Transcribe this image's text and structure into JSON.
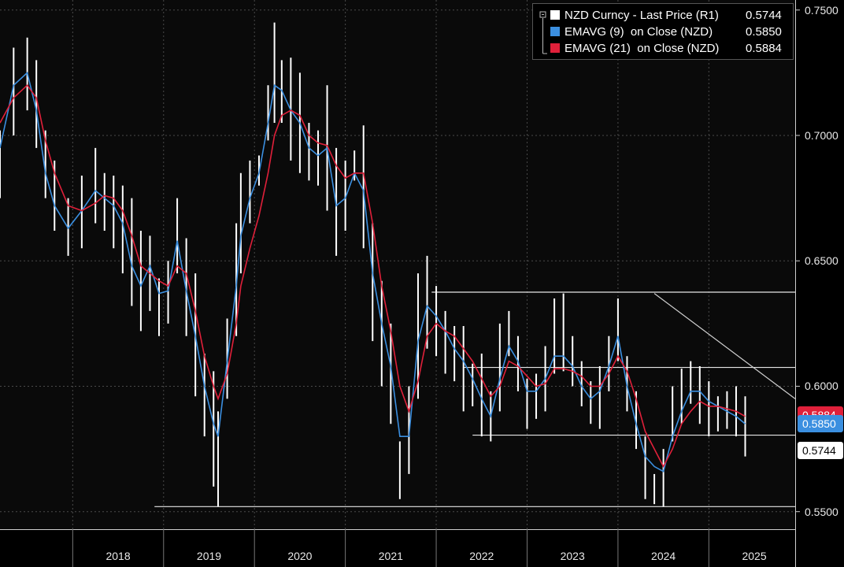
{
  "legend": {
    "items": [
      {
        "label": "NZD Curncy - Last Price (R1)",
        "value": "0.5744",
        "color": "#ffffff"
      },
      {
        "label": "EMAVG (9)  on Close (NZD)",
        "value": "0.5850",
        "color": "#3b8fe0"
      },
      {
        "label": "EMAVG (21)  on Close (NZD)",
        "value": "0.5884",
        "color": "#e0203a"
      }
    ]
  },
  "price_tags": [
    {
      "text": "0.5884",
      "value": 0.5884,
      "bg": "#e0203a",
      "fg": "#ffffff"
    },
    {
      "text": "0.5850",
      "value": 0.585,
      "bg": "#3b8fe0",
      "fg": "#ffffff"
    },
    {
      "text": "0.5744",
      "value": 0.5744,
      "bg": "#ffffff",
      "fg": "#000000"
    }
  ],
  "chart_data": {
    "type": "line",
    "title": "",
    "xlabel": "",
    "ylabel": "",
    "y_axis_side": "right",
    "ylim": [
      0.543,
      0.754
    ],
    "xlim": [
      2017.2,
      2025.95
    ],
    "grid": true,
    "legend_position": "top-right",
    "x_tick_labels": [
      "2018",
      "2019",
      "2020",
      "2021",
      "2022",
      "2023",
      "2024",
      "2025"
    ],
    "year_boundaries": [
      2018,
      2019,
      2020,
      2021,
      2022,
      2023,
      2024,
      2025
    ],
    "y_ticks": [
      {
        "value": 0.75,
        "label": "0.7500"
      },
      {
        "value": 0.7,
        "label": "0.7000"
      },
      {
        "value": 0.65,
        "label": "0.6500"
      },
      {
        "value": 0.6,
        "label": "0.6000"
      },
      {
        "value": 0.55,
        "label": "0.5500"
      }
    ],
    "series": [
      {
        "name": "NZD Curncy - Last Price (R1)",
        "style": "hl_bars",
        "color": "#ffffff",
        "x": [
          2017.2,
          2017.35,
          2017.5,
          2017.6,
          2017.7,
          2017.8,
          2017.95,
          2018.1,
          2018.25,
          2018.35,
          2018.45,
          2018.55,
          2018.65,
          2018.75,
          2018.85,
          2018.95,
          2019.05,
          2019.15,
          2019.25,
          2019.35,
          2019.45,
          2019.55,
          2019.6,
          2019.7,
          2019.8,
          2019.85,
          2019.95,
          2020.05,
          2020.15,
          2020.22,
          2020.3,
          2020.4,
          2020.5,
          2020.6,
          2020.7,
          2020.8,
          2020.9,
          2021.0,
          2021.1,
          2021.2,
          2021.3,
          2021.4,
          2021.5,
          2021.6,
          2021.7,
          2021.8,
          2021.9,
          2022.0,
          2022.1,
          2022.2,
          2022.3,
          2022.4,
          2022.5,
          2022.6,
          2022.7,
          2022.8,
          2022.9,
          2023.0,
          2023.1,
          2023.2,
          2023.3,
          2023.4,
          2023.5,
          2023.6,
          2023.7,
          2023.8,
          2023.9,
          2024.0,
          2024.1,
          2024.2,
          2024.3,
          2024.4,
          2024.5,
          2024.6,
          2024.7,
          2024.8,
          2024.9,
          2025.0,
          2025.1,
          2025.2,
          2025.3,
          2025.4
        ],
        "high": [
          0.702,
          0.735,
          0.739,
          0.73,
          0.702,
          0.69,
          0.675,
          0.684,
          0.695,
          0.685,
          0.684,
          0.68,
          0.675,
          0.662,
          0.66,
          0.643,
          0.65,
          0.675,
          0.659,
          0.645,
          0.613,
          0.606,
          0.59,
          0.627,
          0.665,
          0.685,
          0.69,
          0.692,
          0.72,
          0.745,
          0.73,
          0.731,
          0.725,
          0.705,
          0.702,
          0.72,
          0.695,
          0.69,
          0.694,
          0.704,
          0.665,
          0.642,
          0.625,
          0.578,
          0.6,
          0.645,
          0.652,
          0.64,
          0.63,
          0.624,
          0.624,
          0.609,
          0.613,
          0.598,
          0.625,
          0.63,
          0.62,
          0.603,
          0.605,
          0.616,
          0.635,
          0.637,
          0.62,
          0.61,
          0.602,
          0.608,
          0.62,
          0.635,
          0.612,
          0.598,
          0.58,
          0.565,
          0.575,
          0.6,
          0.607,
          0.61,
          0.608,
          0.602,
          0.596,
          0.598,
          0.6,
          0.596
        ],
        "low": [
          0.675,
          0.7,
          0.71,
          0.695,
          0.675,
          0.662,
          0.652,
          0.655,
          0.665,
          0.662,
          0.655,
          0.645,
          0.632,
          0.622,
          0.63,
          0.62,
          0.625,
          0.645,
          0.62,
          0.596,
          0.58,
          0.56,
          0.552,
          0.595,
          0.62,
          0.645,
          0.665,
          0.68,
          0.698,
          0.705,
          0.705,
          0.69,
          0.685,
          0.682,
          0.68,
          0.67,
          0.652,
          0.662,
          0.682,
          0.655,
          0.618,
          0.6,
          0.585,
          0.555,
          0.565,
          0.595,
          0.615,
          0.612,
          0.605,
          0.602,
          0.59,
          0.592,
          0.58,
          0.578,
          0.59,
          0.612,
          0.598,
          0.583,
          0.587,
          0.59,
          0.605,
          0.606,
          0.6,
          0.592,
          0.585,
          0.583,
          0.598,
          0.61,
          0.59,
          0.575,
          0.555,
          0.553,
          0.552,
          0.578,
          0.585,
          0.593,
          0.585,
          0.58,
          0.582,
          0.583,
          0.58,
          0.572
        ]
      },
      {
        "name": "EMAVG (9)  on Close (NZD)",
        "style": "line",
        "color": "#3b8fe0",
        "x": [
          2017.2,
          2017.35,
          2017.5,
          2017.6,
          2017.7,
          2017.8,
          2017.95,
          2018.1,
          2018.25,
          2018.35,
          2018.45,
          2018.55,
          2018.65,
          2018.75,
          2018.85,
          2018.95,
          2019.05,
          2019.15,
          2019.25,
          2019.35,
          2019.45,
          2019.55,
          2019.6,
          2019.7,
          2019.8,
          2019.85,
          2019.95,
          2020.05,
          2020.15,
          2020.22,
          2020.3,
          2020.4,
          2020.5,
          2020.6,
          2020.7,
          2020.8,
          2020.9,
          2021.0,
          2021.1,
          2021.2,
          2021.3,
          2021.4,
          2021.5,
          2021.6,
          2021.7,
          2021.8,
          2021.9,
          2022.0,
          2022.1,
          2022.2,
          2022.3,
          2022.4,
          2022.5,
          2022.6,
          2022.7,
          2022.8,
          2022.9,
          2023.0,
          2023.1,
          2023.2,
          2023.3,
          2023.4,
          2023.5,
          2023.6,
          2023.7,
          2023.8,
          2023.9,
          2024.0,
          2024.1,
          2024.2,
          2024.3,
          2024.4,
          2024.5,
          2024.6,
          2024.7,
          2024.8,
          2024.9,
          2025.0,
          2025.1,
          2025.2,
          2025.3,
          2025.4
        ],
        "values": [
          0.695,
          0.72,
          0.725,
          0.71,
          0.685,
          0.672,
          0.663,
          0.67,
          0.678,
          0.675,
          0.672,
          0.665,
          0.648,
          0.64,
          0.648,
          0.637,
          0.638,
          0.658,
          0.638,
          0.62,
          0.6,
          0.585,
          0.58,
          0.61,
          0.64,
          0.66,
          0.675,
          0.685,
          0.705,
          0.72,
          0.718,
          0.71,
          0.705,
          0.695,
          0.692,
          0.695,
          0.672,
          0.675,
          0.685,
          0.678,
          0.645,
          0.625,
          0.608,
          0.58,
          0.58,
          0.618,
          0.632,
          0.628,
          0.622,
          0.615,
          0.61,
          0.603,
          0.595,
          0.588,
          0.603,
          0.616,
          0.61,
          0.598,
          0.598,
          0.603,
          0.612,
          0.612,
          0.608,
          0.6,
          0.595,
          0.598,
          0.608,
          0.62,
          0.6,
          0.585,
          0.572,
          0.568,
          0.566,
          0.58,
          0.59,
          0.598,
          0.598,
          0.594,
          0.592,
          0.59,
          0.588,
          0.585
        ]
      },
      {
        "name": "EMAVG (21)  on Close (NZD)",
        "style": "line",
        "color": "#e0203a",
        "x": [
          2017.2,
          2017.35,
          2017.5,
          2017.6,
          2017.7,
          2017.8,
          2017.95,
          2018.1,
          2018.25,
          2018.35,
          2018.45,
          2018.55,
          2018.65,
          2018.75,
          2018.85,
          2018.95,
          2019.05,
          2019.15,
          2019.25,
          2019.35,
          2019.45,
          2019.55,
          2019.6,
          2019.7,
          2019.8,
          2019.85,
          2019.95,
          2020.05,
          2020.15,
          2020.22,
          2020.3,
          2020.4,
          2020.5,
          2020.6,
          2020.7,
          2020.8,
          2020.9,
          2021.0,
          2021.1,
          2021.2,
          2021.3,
          2021.4,
          2021.5,
          2021.6,
          2021.7,
          2021.8,
          2021.9,
          2022.0,
          2022.1,
          2022.2,
          2022.3,
          2022.4,
          2022.5,
          2022.6,
          2022.7,
          2022.8,
          2022.9,
          2023.0,
          2023.1,
          2023.2,
          2023.3,
          2023.4,
          2023.5,
          2023.6,
          2023.7,
          2023.8,
          2023.9,
          2024.0,
          2024.1,
          2024.2,
          2024.3,
          2024.4,
          2024.5,
          2024.6,
          2024.7,
          2024.8,
          2024.9,
          2025.0,
          2025.1,
          2025.2,
          2025.3,
          2025.4
        ],
        "values": [
          0.705,
          0.715,
          0.72,
          0.715,
          0.698,
          0.685,
          0.672,
          0.67,
          0.673,
          0.676,
          0.675,
          0.67,
          0.66,
          0.648,
          0.645,
          0.642,
          0.64,
          0.648,
          0.645,
          0.63,
          0.612,
          0.6,
          0.595,
          0.605,
          0.625,
          0.64,
          0.655,
          0.668,
          0.685,
          0.7,
          0.708,
          0.71,
          0.708,
          0.7,
          0.697,
          0.696,
          0.688,
          0.683,
          0.685,
          0.685,
          0.665,
          0.64,
          0.622,
          0.6,
          0.59,
          0.602,
          0.62,
          0.625,
          0.622,
          0.62,
          0.615,
          0.61,
          0.603,
          0.596,
          0.6,
          0.61,
          0.608,
          0.604,
          0.6,
          0.601,
          0.607,
          0.607,
          0.606,
          0.604,
          0.6,
          0.6,
          0.605,
          0.612,
          0.606,
          0.595,
          0.582,
          0.575,
          0.568,
          0.575,
          0.585,
          0.59,
          0.594,
          0.592,
          0.592,
          0.591,
          0.59,
          0.588
        ]
      }
    ],
    "horizontal_lines": [
      {
        "value": 0.6375,
        "x_start": 2021.95,
        "x_end": 2025.95
      },
      {
        "value": 0.6075,
        "x_start": 2022.3,
        "x_end": 2025.95
      },
      {
        "value": 0.5805,
        "x_start": 2022.4,
        "x_end": 2025.95
      },
      {
        "value": 0.552,
        "x_start": 2018.9,
        "x_end": 2025.95
      }
    ],
    "trend_lines": [
      {
        "x1": 2024.4,
        "y1": 0.637,
        "x2": 2025.95,
        "y2": 0.595
      }
    ]
  }
}
